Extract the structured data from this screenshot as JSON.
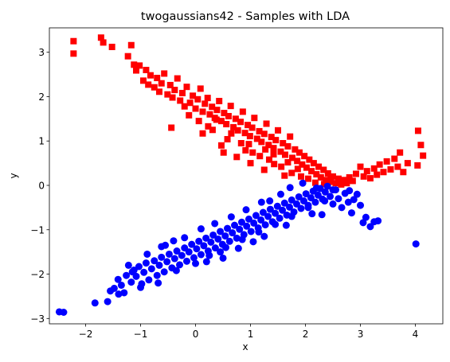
{
  "chart_data": {
    "type": "scatter",
    "title": "twogaussians42 - Samples with LDA",
    "xlabel": "x",
    "ylabel": "y",
    "xlim": [
      -2.66,
      4.5
    ],
    "ylim": [
      -3.12,
      3.55
    ],
    "xticks": [
      -2,
      -1,
      0,
      1,
      2,
      3,
      4
    ],
    "yticks": [
      -3,
      -2,
      -1,
      0,
      1,
      2,
      3
    ],
    "grid": false,
    "legend": "none",
    "series": [
      {
        "color": "#ff0000",
        "marker": "square",
        "points": [
          [
            -2.22,
            3.25
          ],
          [
            -2.22,
            2.97
          ],
          [
            -1.72,
            3.33
          ],
          [
            -1.68,
            3.22
          ],
          [
            -1.52,
            3.12
          ],
          [
            -1.23,
            2.91
          ],
          [
            -1.17,
            3.16
          ],
          [
            -1.12,
            2.72
          ],
          [
            -1.08,
            2.59
          ],
          [
            -1.02,
            2.7
          ],
          [
            -0.95,
            2.36
          ],
          [
            -0.9,
            2.6
          ],
          [
            -0.86,
            2.27
          ],
          [
            -0.82,
            2.48
          ],
          [
            -0.75,
            2.21
          ],
          [
            -0.7,
            2.42
          ],
          [
            -0.66,
            2.11
          ],
          [
            -0.62,
            2.3
          ],
          [
            -0.57,
            2.52
          ],
          [
            -0.51,
            2.05
          ],
          [
            -0.46,
            2.26
          ],
          [
            -0.42,
            1.98
          ],
          [
            -0.38,
            2.15
          ],
          [
            -0.33,
            2.41
          ],
          [
            -0.28,
            1.91
          ],
          [
            -0.24,
            2.08
          ],
          [
            -0.2,
            1.78
          ],
          [
            -0.16,
            2.22
          ],
          [
            -0.1,
            1.86
          ],
          [
            -0.05,
            2.02
          ],
          [
            0.0,
            1.73
          ],
          [
            0.04,
            1.94
          ],
          [
            0.09,
            2.18
          ],
          [
            0.13,
            1.66
          ],
          [
            0.17,
            1.84
          ],
          [
            0.22,
            1.97
          ],
          [
            0.26,
            1.6
          ],
          [
            0.3,
            1.77
          ],
          [
            0.35,
            1.52
          ],
          [
            0.39,
            1.7
          ],
          [
            0.43,
            1.9
          ],
          [
            0.47,
            1.45
          ],
          [
            0.52,
            1.63
          ],
          [
            0.56,
            1.38
          ],
          [
            0.6,
            1.56
          ],
          [
            0.64,
            1.79
          ],
          [
            0.69,
            1.31
          ],
          [
            0.73,
            1.5
          ],
          [
            0.77,
            1.24
          ],
          [
            0.82,
            1.43
          ],
          [
            0.86,
            1.66
          ],
          [
            0.9,
            1.18
          ],
          [
            0.95,
            1.36
          ],
          [
            0.99,
            1.11
          ],
          [
            1.03,
            1.3
          ],
          [
            1.07,
            1.52
          ],
          [
            1.12,
            1.05
          ],
          [
            1.16,
            1.22
          ],
          [
            1.2,
            0.98
          ],
          [
            1.25,
            1.16
          ],
          [
            1.29,
            1.39
          ],
          [
            1.33,
            0.91
          ],
          [
            1.38,
            1.09
          ],
          [
            1.42,
            0.84
          ],
          [
            1.46,
            1.02
          ],
          [
            1.5,
            1.24
          ],
          [
            1.55,
            0.76
          ],
          [
            1.59,
            0.95
          ],
          [
            1.63,
            0.69
          ],
          [
            1.68,
            0.88
          ],
          [
            1.72,
            1.1
          ],
          [
            1.76,
            0.62
          ],
          [
            1.81,
            0.81
          ],
          [
            1.85,
            0.55
          ],
          [
            1.89,
            0.74
          ],
          [
            1.94,
            0.47
          ],
          [
            1.98,
            0.66
          ],
          [
            2.02,
            0.4
          ],
          [
            2.07,
            0.58
          ],
          [
            2.11,
            0.32
          ],
          [
            2.15,
            0.5
          ],
          [
            2.2,
            0.25
          ],
          [
            2.24,
            0.42
          ],
          [
            2.28,
            0.18
          ],
          [
            2.33,
            0.35
          ],
          [
            2.37,
            0.12
          ],
          [
            2.41,
            0.27
          ],
          [
            2.46,
            0.08
          ],
          [
            2.5,
            0.2
          ],
          [
            2.55,
            0.05
          ],
          [
            2.6,
            0.15
          ],
          [
            2.65,
            0.02
          ],
          [
            2.7,
            0.12
          ],
          [
            2.75,
            0.05
          ],
          [
            2.8,
            0.18
          ],
          [
            2.86,
            0.1
          ],
          [
            2.92,
            0.26
          ],
          [
            3.0,
            0.42
          ],
          [
            3.06,
            0.2
          ],
          [
            3.12,
            0.32
          ],
          [
            3.18,
            0.16
          ],
          [
            3.25,
            0.38
          ],
          [
            3.3,
            0.24
          ],
          [
            3.35,
            0.47
          ],
          [
            3.42,
            0.3
          ],
          [
            3.48,
            0.54
          ],
          [
            3.55,
            0.36
          ],
          [
            3.62,
            0.6
          ],
          [
            3.68,
            0.42
          ],
          [
            3.72,
            0.74
          ],
          [
            3.78,
            0.3
          ],
          [
            3.86,
            0.5
          ],
          [
            4.04,
            0.45
          ],
          [
            4.05,
            1.23
          ],
          [
            4.1,
            0.91
          ],
          [
            4.14,
            0.67
          ],
          [
            -0.44,
            1.3
          ],
          [
            0.13,
            1.17
          ],
          [
            0.38,
            1.48
          ],
          [
            0.58,
            1.04
          ],
          [
            1.04,
            0.74
          ],
          [
            1.34,
            0.58
          ],
          [
            1.56,
            0.42
          ],
          [
            1.75,
            0.28
          ],
          [
            1.92,
            0.2
          ],
          [
            0.23,
            1.33
          ],
          [
            0.47,
            0.9
          ],
          [
            0.91,
            0.79
          ],
          [
            1.17,
            0.66
          ],
          [
            1.43,
            0.48
          ],
          [
            0.75,
            0.64
          ],
          [
            1.0,
            0.5
          ],
          [
            1.25,
            0.35
          ],
          [
            1.62,
            0.22
          ],
          [
            0.51,
            0.74
          ],
          [
            0.83,
            0.95
          ],
          [
            1.27,
            0.81
          ],
          [
            1.86,
            0.37
          ],
          [
            2.18,
            0.06
          ],
          [
            2.46,
            0.18
          ],
          [
            -0.12,
            1.58
          ],
          [
            0.06,
            1.45
          ],
          [
            0.31,
            1.25
          ],
          [
            0.65,
            1.17
          ],
          [
            0.97,
            0.93
          ],
          [
            1.42,
            0.7
          ],
          [
            1.68,
            0.52
          ],
          [
            2.05,
            0.15
          ],
          [
            2.34,
            0.03
          ],
          [
            2.66,
            0.1
          ]
        ]
      },
      {
        "color": "#0000ff",
        "marker": "circle",
        "points": [
          [
            -2.48,
            -2.85
          ],
          [
            -2.4,
            -2.86
          ],
          [
            -1.83,
            -2.65
          ],
          [
            -1.6,
            -2.62
          ],
          [
            -1.55,
            -2.38
          ],
          [
            -1.48,
            -2.32
          ],
          [
            -1.41,
            -2.12
          ],
          [
            -1.35,
            -2.25
          ],
          [
            -1.3,
            -2.42
          ],
          [
            -1.26,
            -2.03
          ],
          [
            -1.17,
            -2.18
          ],
          [
            -1.12,
            -1.91
          ],
          [
            -1.08,
            -2.05
          ],
          [
            -1.03,
            -1.83
          ],
          [
            -0.98,
            -2.22
          ],
          [
            -0.94,
            -1.96
          ],
          [
            -0.9,
            -1.75
          ],
          [
            -0.85,
            -2.13
          ],
          [
            -0.8,
            -1.88
          ],
          [
            -0.75,
            -1.7
          ],
          [
            -0.7,
            -2.03
          ],
          [
            -0.66,
            -1.8
          ],
          [
            -0.62,
            -1.62
          ],
          [
            -0.57,
            -1.95
          ],
          [
            -0.52,
            -1.72
          ],
          [
            -0.48,
            -1.55
          ],
          [
            -0.43,
            -1.86
          ],
          [
            -0.38,
            -1.65
          ],
          [
            -0.34,
            -1.48
          ],
          [
            -0.29,
            -1.79
          ],
          [
            -0.25,
            -1.58
          ],
          [
            -0.2,
            -1.41
          ],
          [
            -0.16,
            -1.71
          ],
          [
            -0.12,
            -1.5
          ],
          [
            -0.07,
            -1.33
          ],
          [
            -0.03,
            -1.63
          ],
          [
            0.02,
            -1.43
          ],
          [
            0.06,
            -1.26
          ],
          [
            0.1,
            -1.56
          ],
          [
            0.15,
            -1.36
          ],
          [
            0.19,
            -1.19
          ],
          [
            0.23,
            -1.48
          ],
          [
            0.28,
            -1.28
          ],
          [
            0.32,
            -1.12
          ],
          [
            0.36,
            -1.41
          ],
          [
            0.41,
            -1.21
          ],
          [
            0.45,
            -1.04
          ],
          [
            0.49,
            -1.33
          ],
          [
            0.54,
            -1.14
          ],
          [
            0.58,
            -0.97
          ],
          [
            0.62,
            -1.26
          ],
          [
            0.67,
            -1.07
          ],
          [
            0.71,
            -0.9
          ],
          [
            0.75,
            -1.19
          ],
          [
            0.8,
            -0.99
          ],
          [
            0.84,
            -0.83
          ],
          [
            0.88,
            -1.11
          ],
          [
            0.93,
            -0.92
          ],
          [
            0.97,
            -0.76
          ],
          [
            1.01,
            -1.04
          ],
          [
            1.06,
            -0.85
          ],
          [
            1.1,
            -0.68
          ],
          [
            1.14,
            -0.96
          ],
          [
            1.19,
            -0.78
          ],
          [
            1.23,
            -0.61
          ],
          [
            1.27,
            -0.89
          ],
          [
            1.32,
            -0.7
          ],
          [
            1.36,
            -0.54
          ],
          [
            1.4,
            -0.82
          ],
          [
            1.45,
            -0.63
          ],
          [
            1.49,
            -0.47
          ],
          [
            1.53,
            -0.74
          ],
          [
            1.58,
            -0.56
          ],
          [
            1.62,
            -0.4
          ],
          [
            1.66,
            -0.67
          ],
          [
            1.71,
            -0.49
          ],
          [
            1.75,
            -0.33
          ],
          [
            1.79,
            -0.6
          ],
          [
            1.84,
            -0.42
          ],
          [
            1.88,
            -0.26
          ],
          [
            1.92,
            -0.52
          ],
          [
            1.97,
            -0.35
          ],
          [
            2.01,
            -0.19
          ],
          [
            2.05,
            -0.45
          ],
          [
            2.1,
            -0.28
          ],
          [
            2.14,
            -0.13
          ],
          [
            2.18,
            -0.38
          ],
          [
            2.23,
            -0.22
          ],
          [
            2.27,
            -0.07
          ],
          [
            2.31,
            -0.31
          ],
          [
            2.36,
            -0.15
          ],
          [
            2.4,
            -0.02
          ],
          [
            2.45,
            -0.25
          ],
          [
            2.5,
            -0.42
          ],
          [
            2.55,
            -0.1
          ],
          [
            2.6,
            -0.3
          ],
          [
            2.66,
            -0.5
          ],
          [
            2.72,
            -0.18
          ],
          [
            2.78,
            -0.38
          ],
          [
            2.84,
            -0.62
          ],
          [
            2.88,
            -0.32
          ],
          [
            2.94,
            -0.2
          ],
          [
            3.0,
            -0.45
          ],
          [
            3.05,
            -0.84
          ],
          [
            3.1,
            -0.72
          ],
          [
            3.18,
            -0.93
          ],
          [
            3.25,
            -0.82
          ],
          [
            3.32,
            -0.8
          ],
          [
            2.3,
            -0.66
          ],
          [
            2.12,
            -0.64
          ],
          [
            4.01,
            -1.32
          ],
          [
            0.2,
            -1.72
          ],
          [
            0.5,
            -1.64
          ],
          [
            0.78,
            -1.42
          ],
          [
            1.05,
            -1.27
          ],
          [
            1.25,
            -1.15
          ],
          [
            0.92,
            -0.55
          ],
          [
            1.2,
            -0.38
          ],
          [
            1.55,
            -0.2
          ],
          [
            -0.55,
            -1.35
          ],
          [
            -0.2,
            -1.18
          ],
          [
            0.1,
            -0.98
          ],
          [
            -1.22,
            -1.8
          ],
          [
            -0.88,
            -1.55
          ],
          [
            -0.62,
            -1.38
          ],
          [
            0.35,
            -0.86
          ],
          [
            0.65,
            -0.71
          ],
          [
            1.72,
            -0.05
          ],
          [
            1.95,
            0.05
          ],
          [
            2.2,
            -0.06
          ],
          [
            -1.0,
            -2.3
          ],
          [
            -0.68,
            -2.2
          ],
          [
            -0.35,
            -1.92
          ],
          [
            0.0,
            -1.76
          ],
          [
            0.25,
            -1.58
          ],
          [
            0.55,
            -1.4
          ],
          [
            0.85,
            -1.22
          ],
          [
            1.15,
            -1.05
          ],
          [
            1.45,
            -0.88
          ],
          [
            1.75,
            -0.7
          ],
          [
            2.05,
            -0.5
          ],
          [
            2.35,
            -0.35
          ],
          [
            -1.4,
            -2.45
          ],
          [
            -1.15,
            -1.95
          ],
          [
            -0.4,
            -1.25
          ],
          [
            0.45,
            -1.5
          ],
          [
            1.35,
            -0.35
          ],
          [
            1.65,
            -0.9
          ],
          [
            2.5,
            -0.1
          ],
          [
            2.8,
            -0.12
          ]
        ]
      }
    ]
  }
}
